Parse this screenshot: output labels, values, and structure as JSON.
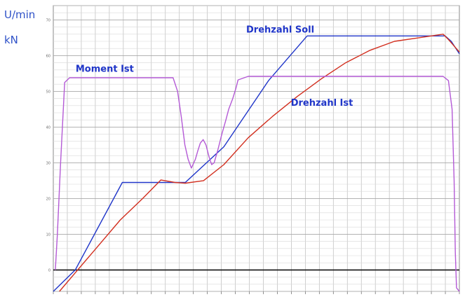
{
  "chart_data": {
    "type": "line",
    "ylabel_lines": [
      "U/min",
      "kN"
    ],
    "xlim": [
      0,
      100
    ],
    "ylim": [
      -6,
      74
    ],
    "y_ticks": [
      0,
      10,
      20,
      30,
      40,
      50,
      60,
      70
    ],
    "y_tick_labels": [
      "0",
      "10",
      "20",
      "30",
      "40",
      "50",
      "60",
      "70"
    ],
    "zero_line": 0,
    "grid": true,
    "series": [
      {
        "name": "Drehzahl Soll",
        "color": "#2036c9",
        "points": [
          [
            0,
            -6
          ],
          [
            5.4,
            0
          ],
          [
            17,
            24.5
          ],
          [
            32.5,
            24.5
          ],
          [
            42,
            34.5
          ],
          [
            53,
            53
          ],
          [
            62.5,
            65.5
          ],
          [
            96.5,
            65.5
          ],
          [
            98,
            64
          ],
          [
            100,
            60.5
          ]
        ]
      },
      {
        "name": "Drehzahl Ist",
        "color": "#d22f1f",
        "points": [
          [
            1.5,
            -6
          ],
          [
            6,
            0
          ],
          [
            10.5,
            6
          ],
          [
            16.5,
            14
          ],
          [
            22,
            20
          ],
          [
            26.5,
            25.2
          ],
          [
            30,
            24.5
          ],
          [
            32.5,
            24.3
          ],
          [
            37,
            25
          ],
          [
            42,
            29.5
          ],
          [
            48,
            37
          ],
          [
            54,
            43
          ],
          [
            60,
            48.5
          ],
          [
            66,
            53.5
          ],
          [
            72,
            58
          ],
          [
            78,
            61.5
          ],
          [
            84,
            64
          ],
          [
            90,
            65
          ],
          [
            96,
            66
          ],
          [
            97.3,
            64.5
          ],
          [
            100,
            61
          ]
        ]
      },
      {
        "name": "Moment Ist",
        "color": "#b45ad6",
        "points": [
          [
            0.5,
            0
          ],
          [
            1,
            10
          ],
          [
            1.8,
            30
          ],
          [
            2.8,
            52.5
          ],
          [
            4,
            53.8
          ],
          [
            29.5,
            53.8
          ],
          [
            30.6,
            50
          ],
          [
            31.5,
            43
          ],
          [
            32.4,
            35
          ],
          [
            33.2,
            31
          ],
          [
            34,
            28.5
          ],
          [
            35,
            31
          ],
          [
            35.6,
            33.4
          ],
          [
            36.2,
            35.5
          ],
          [
            36.9,
            36.5
          ],
          [
            37.6,
            35
          ],
          [
            38.4,
            31.5
          ],
          [
            39,
            29.5
          ],
          [
            39.6,
            30
          ],
          [
            40.5,
            33.5
          ],
          [
            41.5,
            38
          ],
          [
            42.5,
            42
          ],
          [
            43.2,
            45
          ],
          [
            44.2,
            48
          ],
          [
            45,
            51
          ],
          [
            45.5,
            53.2
          ],
          [
            48,
            54.2
          ],
          [
            96,
            54.2
          ],
          [
            97.3,
            53
          ],
          [
            98.2,
            45
          ],
          [
            98.7,
            25
          ],
          [
            99,
            5
          ],
          [
            99.3,
            -5
          ],
          [
            100,
            -6
          ]
        ]
      }
    ],
    "labels": [
      {
        "text": "Drehzahl Soll",
        "color": "#2036c9",
        "x": 47.5,
        "y": 66.5
      },
      {
        "text": "Drehzahl Ist",
        "color": "#2036c9",
        "x": 58.5,
        "y": 46
      },
      {
        "text": "Moment Ist",
        "color": "#2036c9",
        "x": 5.5,
        "y": 55.5
      }
    ]
  }
}
